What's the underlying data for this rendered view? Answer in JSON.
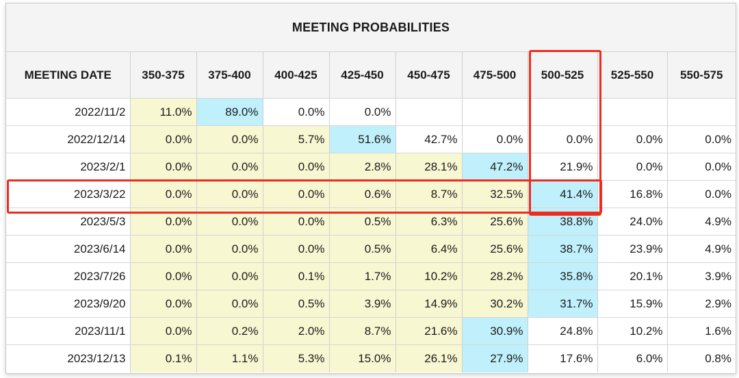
{
  "title": "MEETING PROBABILITIES",
  "columns": [
    "MEETING DATE",
    "350-375",
    "375-400",
    "400-425",
    "425-450",
    "450-475",
    "475-500",
    "500-525",
    "525-550",
    "550-575"
  ],
  "rows": [
    {
      "date": "2022/11/2",
      "cells": [
        "11.0%",
        "89.0%",
        "0.0%",
        "0.0%",
        "",
        "",
        "",
        "",
        ""
      ]
    },
    {
      "date": "2022/12/14",
      "cells": [
        "0.0%",
        "0.0%",
        "5.7%",
        "51.6%",
        "42.7%",
        "0.0%",
        "0.0%",
        "0.0%",
        "0.0%"
      ]
    },
    {
      "date": "2023/2/1",
      "cells": [
        "0.0%",
        "0.0%",
        "0.0%",
        "2.8%",
        "28.1%",
        "47.2%",
        "21.9%",
        "0.0%",
        "0.0%"
      ]
    },
    {
      "date": "2023/3/22",
      "cells": [
        "0.0%",
        "0.0%",
        "0.0%",
        "0.6%",
        "8.7%",
        "32.5%",
        "41.4%",
        "16.8%",
        "0.0%"
      ]
    },
    {
      "date": "2023/5/3",
      "cells": [
        "0.0%",
        "0.0%",
        "0.0%",
        "0.5%",
        "6.3%",
        "25.6%",
        "38.8%",
        "24.0%",
        "4.9%"
      ]
    },
    {
      "date": "2023/6/14",
      "cells": [
        "0.0%",
        "0.0%",
        "0.0%",
        "0.5%",
        "6.4%",
        "25.6%",
        "38.7%",
        "23.9%",
        "4.9%"
      ]
    },
    {
      "date": "2023/7/26",
      "cells": [
        "0.0%",
        "0.0%",
        "0.1%",
        "1.7%",
        "10.2%",
        "28.2%",
        "35.8%",
        "20.1%",
        "3.9%"
      ]
    },
    {
      "date": "2023/9/20",
      "cells": [
        "0.0%",
        "0.0%",
        "0.5%",
        "3.9%",
        "14.9%",
        "30.2%",
        "31.7%",
        "15.9%",
        "2.9%"
      ]
    },
    {
      "date": "2023/11/1",
      "cells": [
        "0.0%",
        "0.2%",
        "2.0%",
        "8.7%",
        "21.6%",
        "30.9%",
        "24.8%",
        "10.2%",
        "1.6%"
      ]
    },
    {
      "date": "2023/12/13",
      "cells": [
        "0.1%",
        "1.1%",
        "5.3%",
        "15.0%",
        "26.1%",
        "27.9%",
        "17.6%",
        "6.0%",
        "0.8%"
      ]
    }
  ],
  "shading": [
    [
      "y",
      "c",
      "w",
      "w",
      "w",
      "w",
      "w",
      "w",
      "w"
    ],
    [
      "y",
      "y",
      "y",
      "c",
      "w",
      "w",
      "w",
      "w",
      "w"
    ],
    [
      "y",
      "y",
      "y",
      "y",
      "y",
      "c",
      "w",
      "w",
      "w"
    ],
    [
      "y",
      "y",
      "y",
      "y",
      "y",
      "y",
      "c",
      "w",
      "w"
    ],
    [
      "y",
      "y",
      "y",
      "y",
      "y",
      "y",
      "c",
      "w",
      "w"
    ],
    [
      "y",
      "y",
      "y",
      "y",
      "y",
      "y",
      "c",
      "w",
      "w"
    ],
    [
      "y",
      "y",
      "y",
      "y",
      "y",
      "y",
      "c",
      "w",
      "w"
    ],
    [
      "y",
      "y",
      "y",
      "y",
      "y",
      "y",
      "c",
      "w",
      "w"
    ],
    [
      "y",
      "y",
      "y",
      "y",
      "y",
      "c",
      "w",
      "w",
      "w"
    ],
    [
      "y",
      "y",
      "y",
      "y",
      "y",
      "c",
      "w",
      "w",
      "w"
    ]
  ],
  "highlight_color": "#ee2b1e",
  "highlighted_column": "500-525",
  "highlighted_row": "2023/3/22"
}
